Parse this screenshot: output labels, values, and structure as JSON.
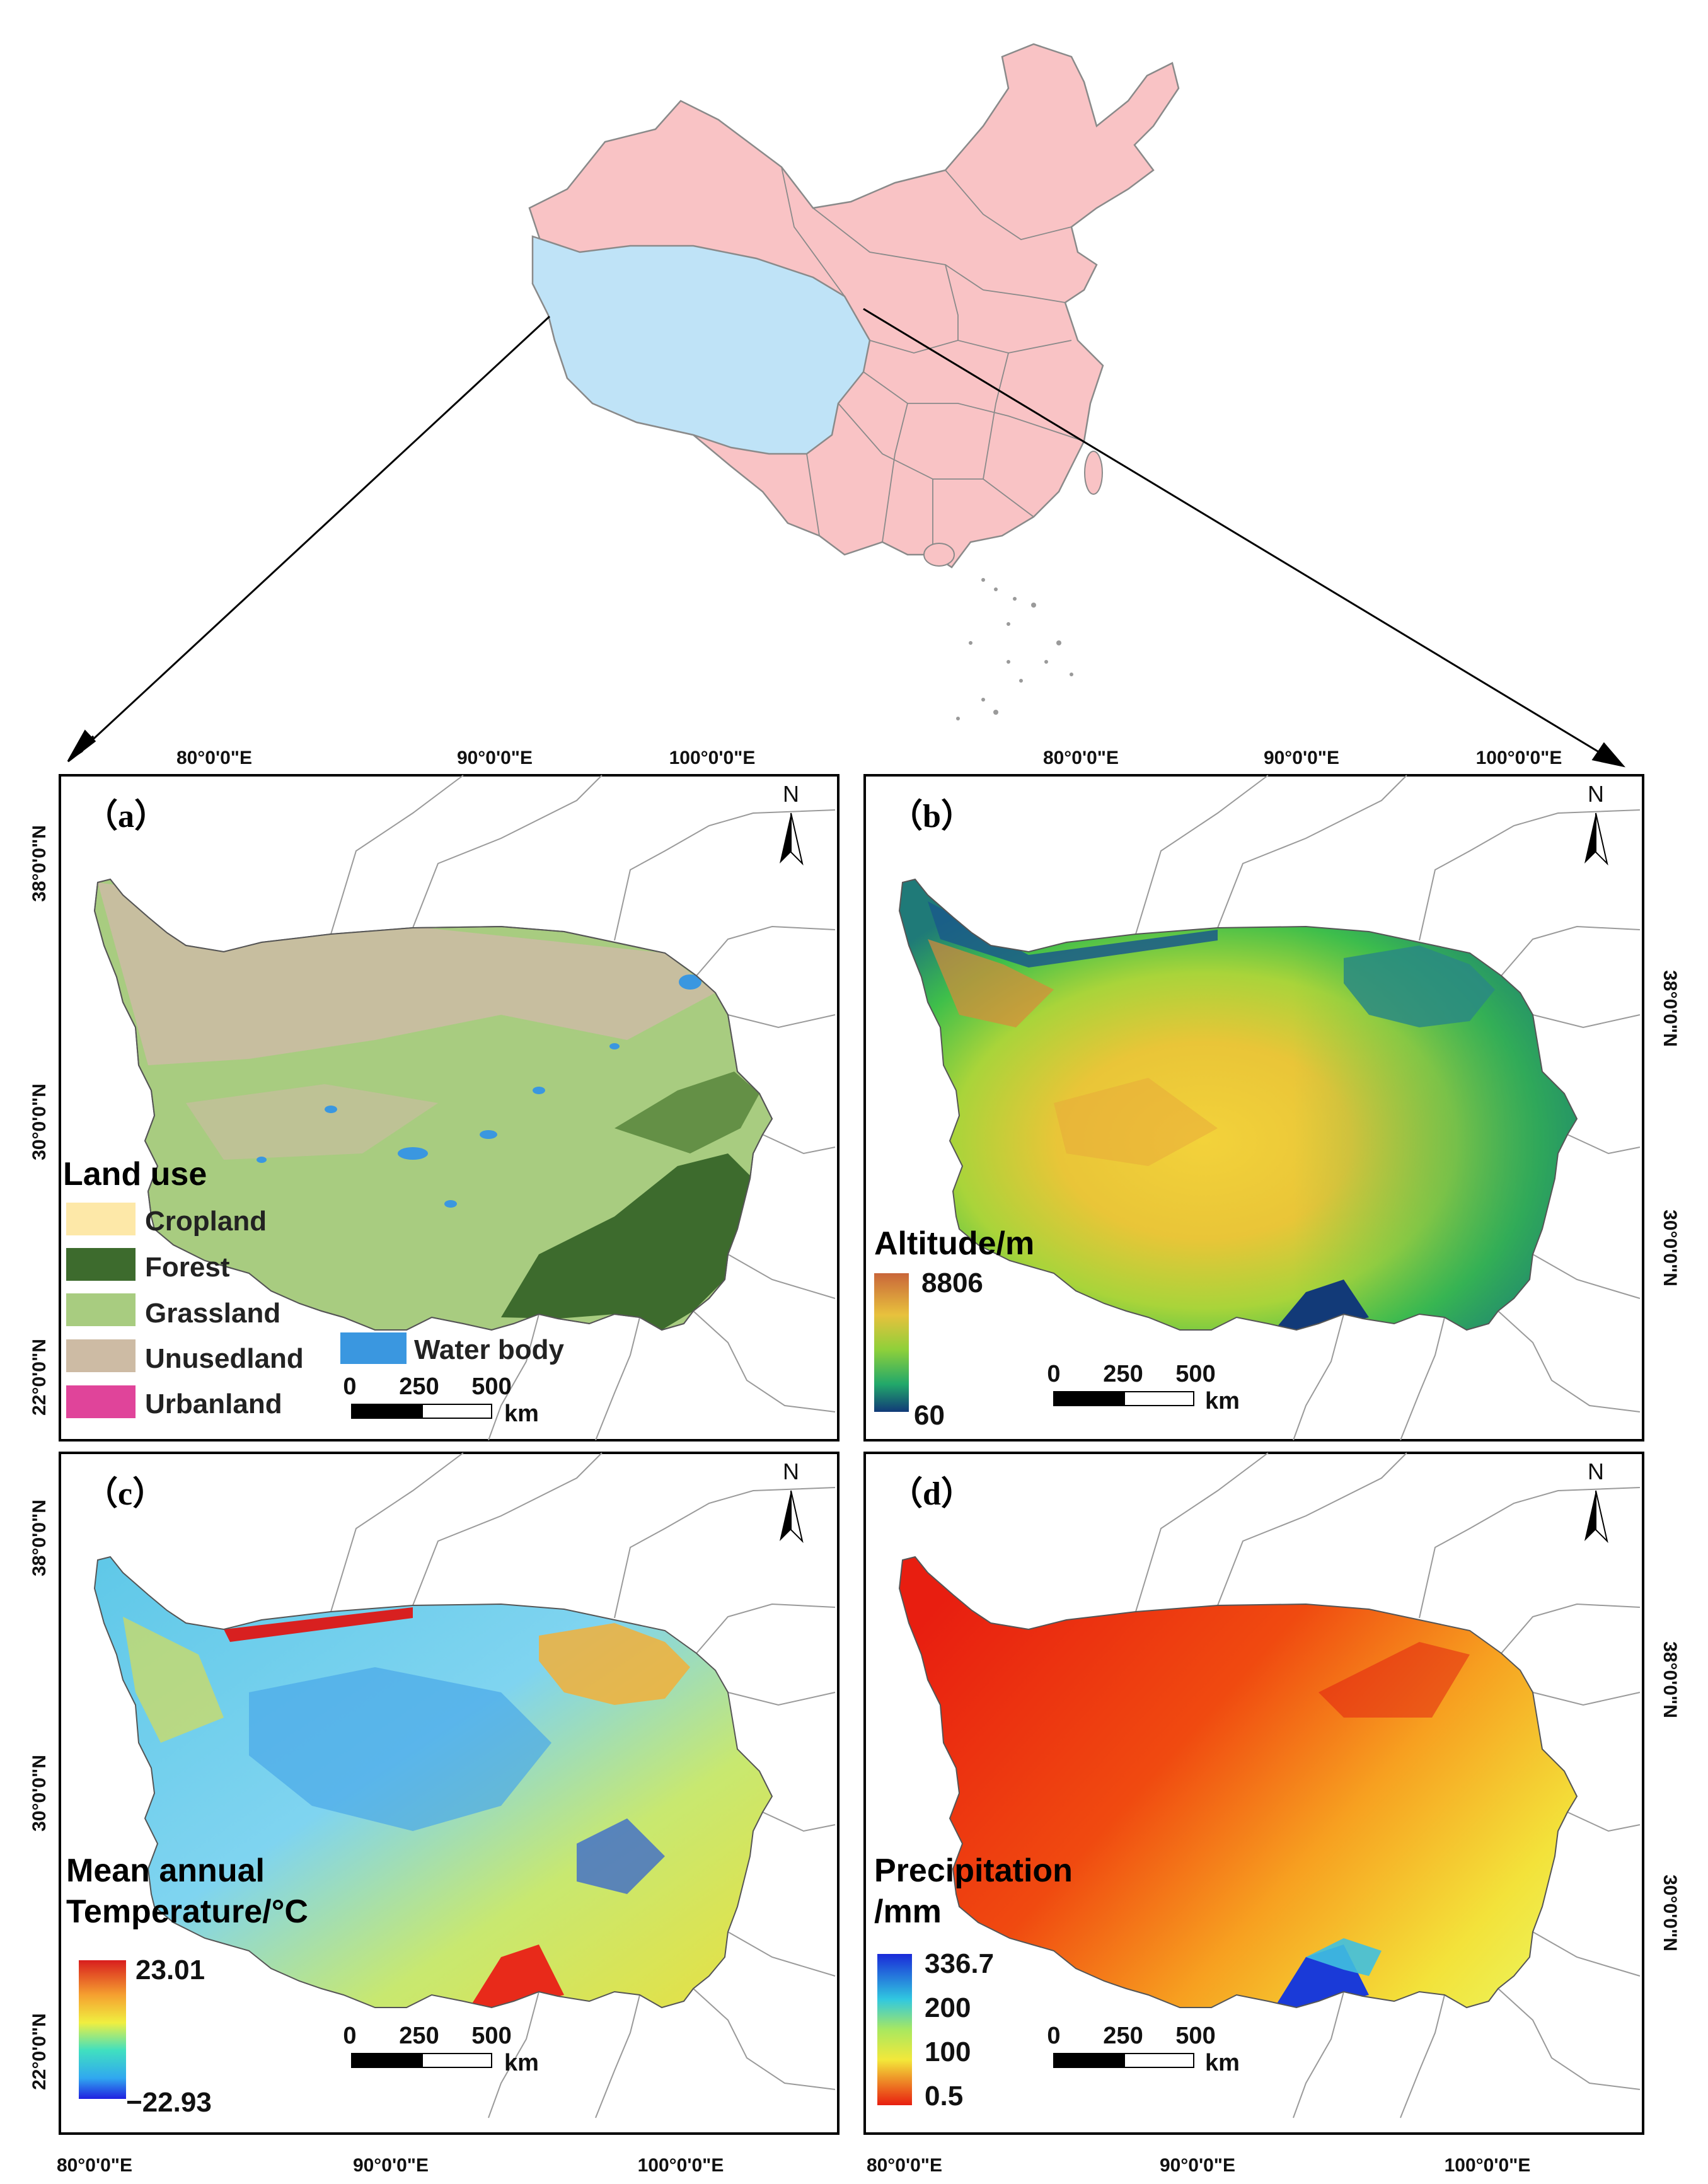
{
  "panels": {
    "a": {
      "label": "（a）",
      "legend_title": "Land use",
      "legend_items": [
        {
          "label": "Cropland",
          "color": "#fde8a8"
        },
        {
          "label": "Forest",
          "color": "#3d6b2d"
        },
        {
          "label": "Grassland",
          "color": "#a8cc80"
        },
        {
          "label": "Unusedland",
          "color": "#cdbba4"
        },
        {
          "label": "Urbanland",
          "color": "#e0449a"
        },
        {
          "label": "Water body",
          "color": "#3a97e0"
        }
      ],
      "scale": {
        "ticks": [
          "0",
          "250",
          "500"
        ],
        "unit": "km"
      },
      "top_lon": [
        "80°0'0\"E",
        "90°0'0\"E",
        "100°0'0\"E"
      ],
      "left_lat": [
        "38°0'0\"N",
        "30°0'0\"N",
        "22°0'0\"N"
      ]
    },
    "b": {
      "label": "（b）",
      "legend_title": "Altitude/m",
      "colorbar_max": "8806",
      "colorbar_min": "60",
      "scale": {
        "ticks": [
          "0",
          "250",
          "500"
        ],
        "unit": "km"
      },
      "top_lon": [
        "80°0'0\"E",
        "90°0'0\"E",
        "100°0'0\"E"
      ],
      "right_lat": [
        "38°0'0\"N",
        "30°0'0\"N"
      ]
    },
    "c": {
      "label": "（c）",
      "legend_title_1": "Mean annual",
      "legend_title_2": "Temperature/°C",
      "colorbar_max": "23.01",
      "colorbar_min": "−22.93",
      "scale": {
        "ticks": [
          "0",
          "250",
          "500"
        ],
        "unit": "km"
      },
      "bottom_lon": [
        "80°0'0\"E",
        "90°0'0\"E",
        "100°0'0\"E"
      ],
      "left_lat": [
        "38°0'0\"N",
        "30°0'0\"N",
        "22°0'0\"N"
      ]
    },
    "d": {
      "label": "（d）",
      "legend_title_1": "Precipitation",
      "legend_title_2": "/mm",
      "colorbar_ticks": [
        "336.7",
        "200",
        "100",
        "0.5"
      ],
      "scale": {
        "ticks": [
          "0",
          "250",
          "500"
        ],
        "unit": "km"
      },
      "bottom_lon": [
        "80°0'0\"E",
        "90°0'0\"E",
        "100°0'0\"E"
      ],
      "right_lat": [
        "38°0'0\"N",
        "30°0'0\"N"
      ]
    }
  },
  "north_arrow": "N",
  "colors": {
    "china_fill": "#f9c3c5",
    "plateau_fill": "#bfe3f7",
    "boundary": "#7a7a7a"
  }
}
